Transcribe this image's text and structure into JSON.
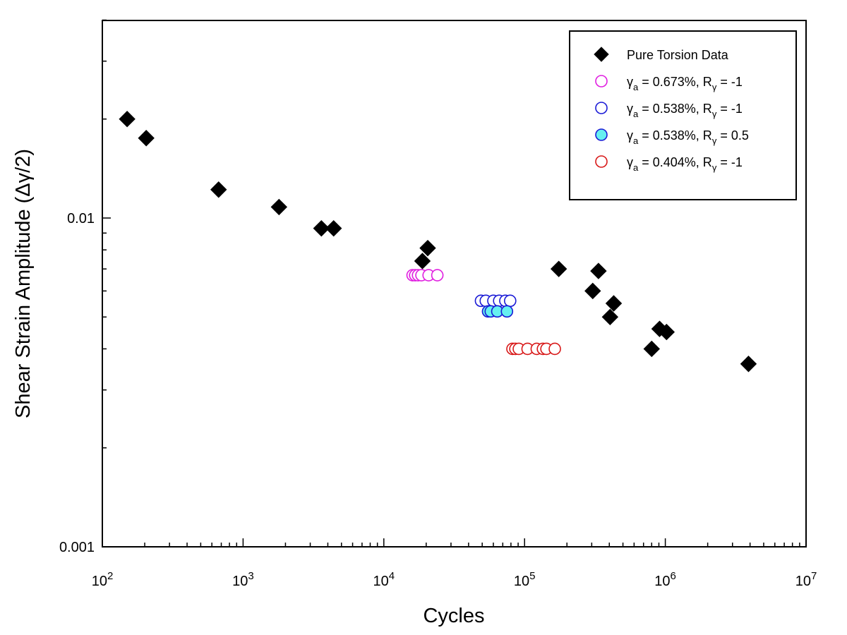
{
  "chart_data": {
    "type": "scatter",
    "xlabel": "Cycles",
    "ylabel": "Shear Strain Amplitude (Δγ/2)",
    "xscale": "log",
    "yscale": "log",
    "xlim": [
      100,
      10000000
    ],
    "ylim": [
      0.001,
      0.045
    ],
    "grid": false,
    "legend_position": "top-right",
    "x_ticks": [
      {
        "value": 100,
        "base": "10",
        "exp": "2"
      },
      {
        "value": 1000,
        "base": "10",
        "exp": "3"
      },
      {
        "value": 10000,
        "base": "10",
        "exp": "4"
      },
      {
        "value": 100000,
        "base": "10",
        "exp": "5"
      },
      {
        "value": 1000000,
        "base": "10",
        "exp": "6"
      },
      {
        "value": 10000000,
        "base": "10",
        "exp": "7"
      }
    ],
    "y_ticks": [
      {
        "value": 0.001,
        "label": "0.001"
      },
      {
        "value": 0.01,
        "label": "0.01"
      }
    ],
    "series": [
      {
        "legend": {
          "pre": "Pure Torsion Data",
          "sub1": "",
          "mid": "",
          "sub2": "",
          "post": ""
        },
        "marker": "diamond",
        "color": "#000000",
        "fill": "#000000",
        "points": [
          [
            150,
            0.02
          ],
          [
            205,
            0.0175
          ],
          [
            670,
            0.0122
          ],
          [
            1800,
            0.0108
          ],
          [
            3600,
            0.0093
          ],
          [
            4400,
            0.0093
          ],
          [
            18800,
            0.0074
          ],
          [
            20500,
            0.0081
          ],
          [
            175000,
            0.007
          ],
          [
            305000,
            0.006
          ],
          [
            335000,
            0.0069
          ],
          [
            430000,
            0.0055
          ],
          [
            405000,
            0.005
          ],
          [
            910000,
            0.0046
          ],
          [
            1020000,
            0.0045
          ],
          [
            800000,
            0.004
          ],
          [
            3900000,
            0.0036
          ]
        ]
      },
      {
        "legend": {
          "pre": "γ",
          "sub1": "a",
          "mid": " = 0.673%, R",
          "sub2": "γ",
          "post": " = -1"
        },
        "marker": "circle",
        "color": "#e01ee0",
        "fill": "#ffffff",
        "points": [
          [
            16000,
            0.0067
          ],
          [
            16700,
            0.0067
          ],
          [
            17500,
            0.0067
          ],
          [
            18500,
            0.0067
          ],
          [
            20800,
            0.0067
          ],
          [
            24000,
            0.0067
          ]
        ]
      },
      {
        "legend": {
          "pre": "γ",
          "sub1": "a",
          "mid": " = 0.538%, R",
          "sub2": "γ",
          "post": " = -1"
        },
        "marker": "circle",
        "color": "#1a1ad6",
        "fill": "#ffffff",
        "points": [
          [
            49000,
            0.0056
          ],
          [
            53000,
            0.0056
          ],
          [
            60000,
            0.0056
          ],
          [
            66000,
            0.0056
          ],
          [
            73000,
            0.0056
          ],
          [
            79000,
            0.0056
          ]
        ]
      },
      {
        "legend": {
          "pre": "γ",
          "sub1": "a",
          "mid": " = 0.538%, R",
          "sub2": "γ",
          "post": " = 0.5"
        },
        "marker": "circle",
        "color": "#1a1ad6",
        "fill": "#66f0f0",
        "points": [
          [
            55000,
            0.0052
          ],
          [
            57500,
            0.0052
          ],
          [
            64000,
            0.0052
          ],
          [
            75000,
            0.0052
          ]
        ]
      },
      {
        "legend": {
          "pre": "γ",
          "sub1": "a",
          "mid": " = 0.404%, R",
          "sub2": "γ",
          "post": " = -1"
        },
        "marker": "circle",
        "color": "#d81818",
        "fill": "#ffffff",
        "points": [
          [
            82000,
            0.004
          ],
          [
            86000,
            0.004
          ],
          [
            91000,
            0.004
          ],
          [
            105000,
            0.004
          ],
          [
            122000,
            0.004
          ],
          [
            135000,
            0.004
          ],
          [
            143000,
            0.004
          ],
          [
            164000,
            0.004
          ]
        ]
      }
    ]
  }
}
